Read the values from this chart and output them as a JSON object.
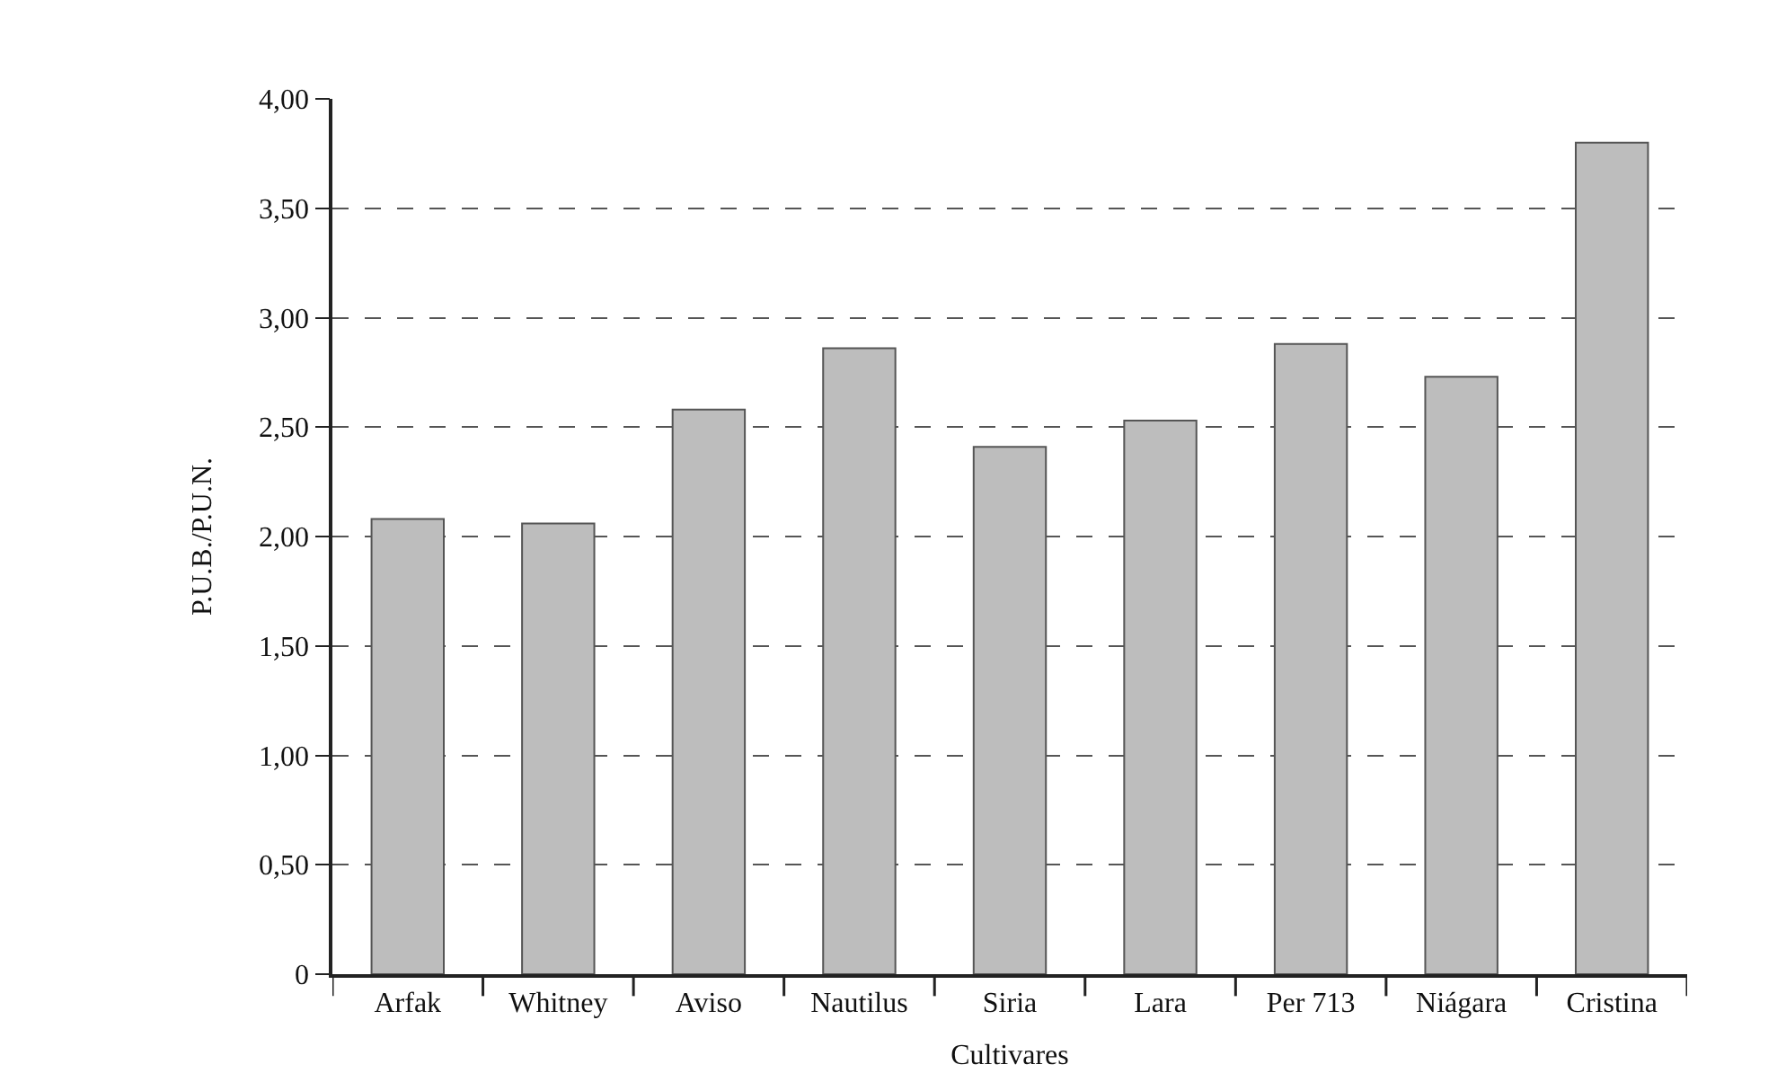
{
  "chart_data": {
    "type": "bar",
    "xlabel": "Cultivares",
    "ylabel": "P.U.B./P.U.N.",
    "categories": [
      "Arfak",
      "Whitney",
      "Aviso",
      "Nautilus",
      "Siria",
      "Lara",
      "Per 713",
      "Niágara",
      "Cristina"
    ],
    "values": [
      2.08,
      2.06,
      2.58,
      2.86,
      2.41,
      2.53,
      2.88,
      2.73,
      3.8
    ],
    "color": "#bdbdbd",
    "ylim": [
      0,
      4
    ],
    "yticks": [
      0,
      {
        "value": 0.5,
        "label": "0,50"
      },
      {
        "value": 1,
        "label": "1,00"
      },
      {
        "value": 1.5,
        "label": "1,50"
      },
      {
        "value": 2,
        "label": "2,00"
      },
      {
        "value": 2.5,
        "label": "2,50"
      },
      {
        "value": 3,
        "label": "3,00"
      },
      {
        "value": 3.5,
        "label": "3,50"
      },
      {
        "value": 4,
        "label": "4,00"
      }
    ],
    "grid": "y"
  }
}
